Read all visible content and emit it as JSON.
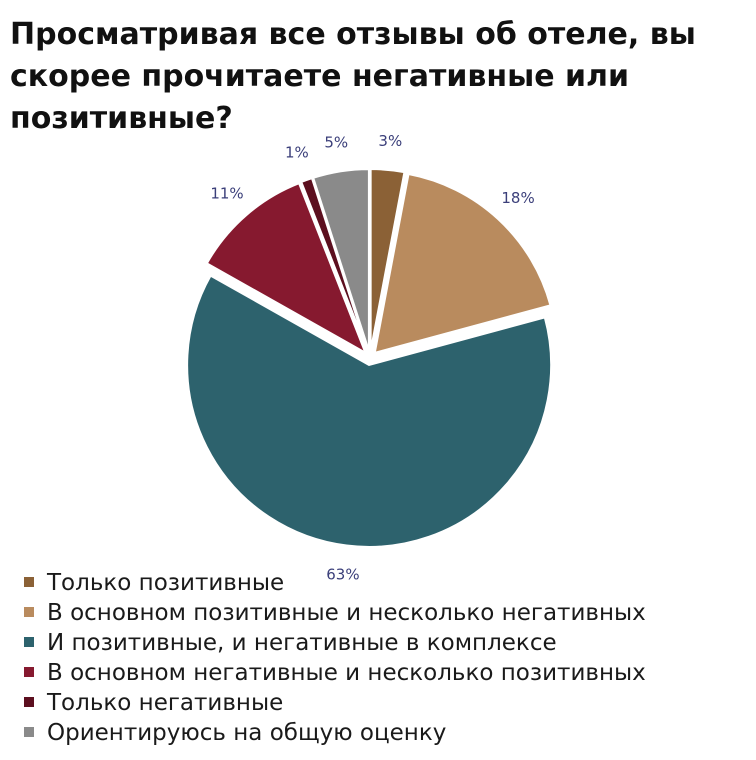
{
  "chart_data": {
    "type": "pie",
    "title_lines": [
      "Просматривая все отзывы об отеле, вы",
      "скорее прочитаете негативные или",
      "позитивные?"
    ],
    "slices": [
      {
        "name": "Только позитивные",
        "value": 3,
        "label": "3%",
        "color": "#8b6136"
      },
      {
        "name": "В основном позитивные и несколько негативных",
        "value": 18,
        "label": "18%",
        "color": "#b98b5e"
      },
      {
        "name": "И позитивные, и негативные в комплексе",
        "value": 63,
        "label": "63%",
        "color": "#2d626d"
      },
      {
        "name": "В основном негативные и несколько позитивных",
        "value": 11,
        "label": "11%",
        "color": "#86192f"
      },
      {
        "name": "Только негативные",
        "value": 1,
        "label": "1%",
        "color": "#5c0f1f"
      },
      {
        "name": "Ориентируюсь на общую оценку",
        "value": 5,
        "label": "5%",
        "color": "#8a8a8a"
      }
    ],
    "start_angle": "top",
    "direction": "clockwise",
    "legend_position": "bottom-left"
  }
}
